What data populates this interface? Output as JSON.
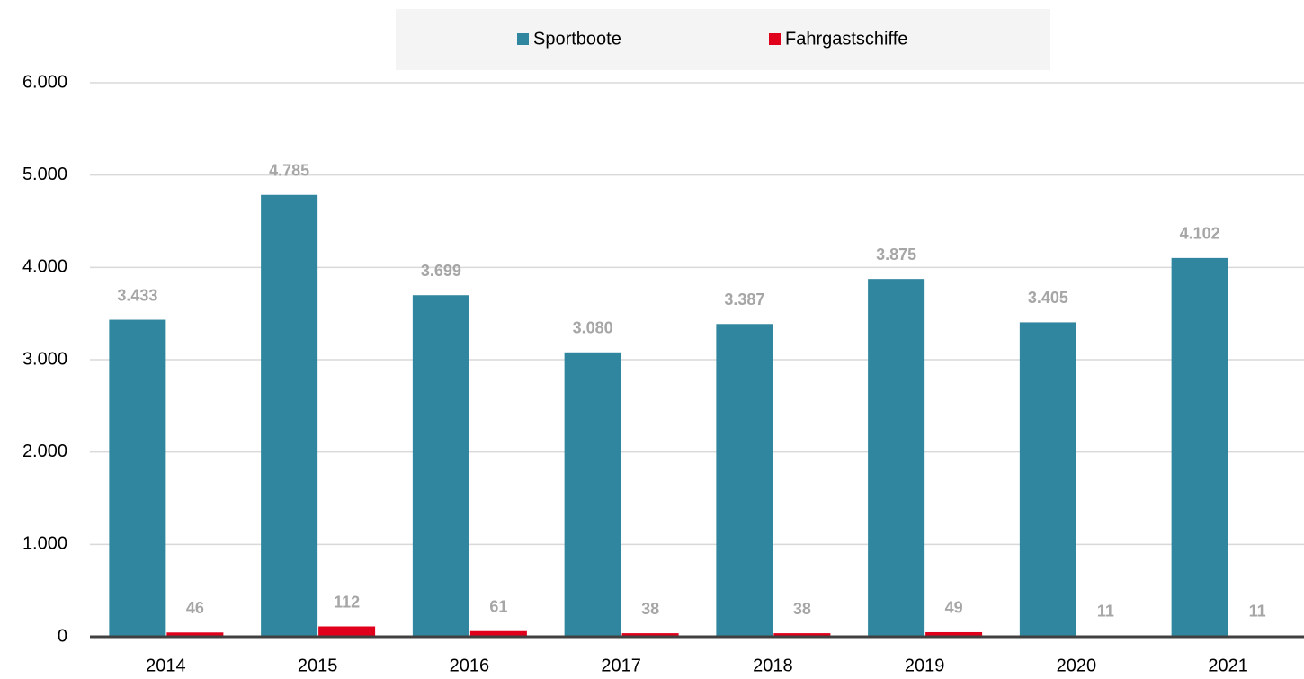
{
  "chart_data": {
    "type": "bar",
    "categories": [
      "2014",
      "2015",
      "2016",
      "2017",
      "2018",
      "2019",
      "2020",
      "2021"
    ],
    "series": [
      {
        "name": "Sportboote",
        "color": "#2f869e",
        "values": [
          3433,
          4785,
          3699,
          3080,
          3387,
          3875,
          3405,
          4102
        ],
        "value_labels": [
          "3.433",
          "4.785",
          "3.699",
          "3.080",
          "3.387",
          "3.875",
          "3.405",
          "4.102"
        ]
      },
      {
        "name": "Fahrgastschiffe",
        "color": "#e0001b",
        "values": [
          46,
          112,
          61,
          38,
          38,
          49,
          11,
          11
        ]
      }
    ],
    "ylim": [
      0,
      6000
    ],
    "yticks": [
      {
        "value": 0,
        "label": "0"
      },
      {
        "value": 1000,
        "label": "1.000"
      },
      {
        "value": 2000,
        "label": "2.000"
      },
      {
        "value": 3000,
        "label": "3.000"
      },
      {
        "value": 4000,
        "label": "4.000"
      },
      {
        "value": 5000,
        "label": "5.000"
      },
      {
        "value": 6000,
        "label": "6.000"
      }
    ],
    "grid": true,
    "legend": "top"
  }
}
